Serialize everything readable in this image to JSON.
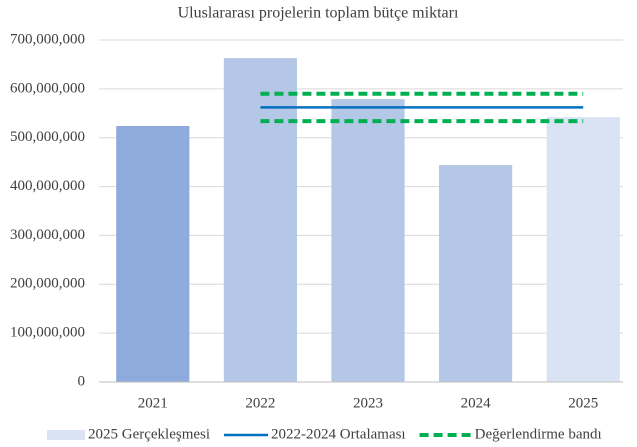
{
  "chart_data": {
    "type": "bar",
    "title": "Uluslararası  projelerin toplam bütçe miktarı",
    "categories": [
      "2021",
      "2022",
      "2023",
      "2024",
      "2025"
    ],
    "series": [
      {
        "type": "bar",
        "colors": [
          "#8faadc",
          "#b4c7e7",
          "#b4c7e7",
          "#b4c7e7"
        ],
        "values": [
          524000000,
          663000000,
          579000000,
          444000000,
          null
        ]
      },
      {
        "type": "bar",
        "name": "2025 Gerçekleşmesi",
        "color": "#dae3f3",
        "values": [
          null,
          null,
          null,
          null,
          542000000
        ]
      },
      {
        "type": "line",
        "name": "2022-2024 Ortalaması",
        "color": "#0070c0",
        "values": [
          null,
          562000000,
          562000000,
          562000000,
          562000000
        ]
      },
      {
        "type": "line",
        "name": "Değerlendirme bandı",
        "color": "#00b050",
        "dashed": true,
        "values": [
          null,
          590000000,
          590000000,
          590000000,
          590000000
        ]
      },
      {
        "type": "line",
        "color": "#00b050",
        "dashed": true,
        "values": [
          null,
          534000000,
          534000000,
          534000000,
          534000000
        ]
      }
    ],
    "ylim": [
      0,
      700000000
    ],
    "yticks": [
      0,
      {
        "value": 100000000,
        "label": "100,000,000"
      },
      {
        "value": 200000000,
        "label": "200,000,000"
      },
      {
        "value": 300000000,
        "label": "300,000,000"
      },
      {
        "value": 400000000,
        "label": "400,000,000"
      },
      {
        "value": 500000000,
        "label": "500,000,000"
      },
      {
        "value": 600000000,
        "label": "600,000,000"
      },
      {
        "value": 700000000,
        "label": "700,000,000"
      }
    ],
    "grid": true,
    "legend": "bottom"
  }
}
